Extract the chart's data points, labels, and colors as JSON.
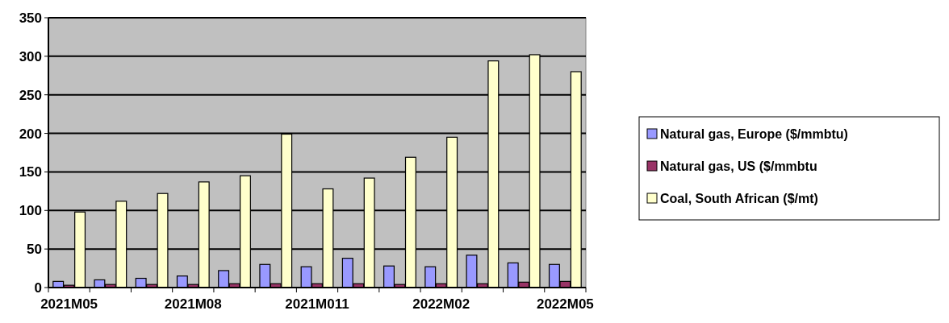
{
  "chart_data": {
    "type": "bar",
    "categories": [
      "2021M05",
      null,
      null,
      "2021M08",
      null,
      null,
      "2021M011",
      null,
      null,
      "2022M02",
      null,
      null,
      "2022M05"
    ],
    "series": [
      {
        "name": "Natural gas, Europe ($/mmbtu)",
        "color": "#9999ff",
        "values": [
          8,
          10,
          12,
          15,
          22,
          30,
          27,
          38,
          28,
          27,
          42,
          32,
          30
        ]
      },
      {
        "name": "Natural gas, US ($/mmbtu",
        "color": "#993366",
        "values": [
          3,
          4,
          4,
          4,
          5,
          5,
          5,
          5,
          4,
          5,
          5,
          7,
          8
        ]
      },
      {
        "name": "Coal, South African ($/mt)",
        "color": "#ffffcc",
        "values": [
          98,
          112,
          122,
          137,
          145,
          199,
          128,
          142,
          169,
          195,
          294,
          302,
          280
        ]
      }
    ],
    "ylim": [
      0,
      350
    ],
    "yticks": [
      0,
      50,
      100,
      150,
      200,
      250,
      300,
      350
    ],
    "grid": "y",
    "legend": "right"
  }
}
